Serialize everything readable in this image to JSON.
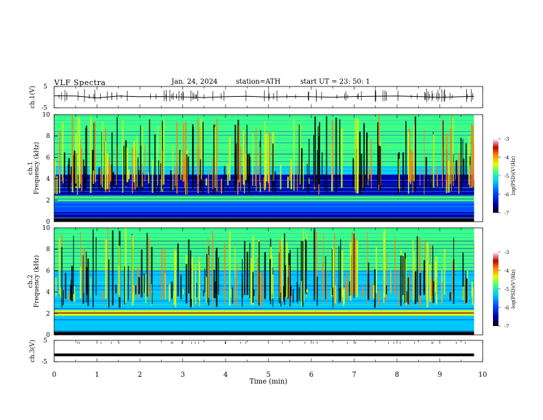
{
  "header": {
    "title": "VLF  Spectra",
    "date": "Jan. 24, 2024",
    "station": "station=ATH",
    "start": "start  UT  =    23: 50: 1"
  },
  "chart_data": [
    {
      "type": "line",
      "panel": "ch1-waveform",
      "ylabel": "ch.1(V)",
      "ylim": [
        -5,
        5
      ],
      "yticks": [
        "5",
        "-5"
      ],
      "x": [
        0,
        0.5,
        1,
        1.5,
        2,
        2.5,
        3,
        3.5,
        4,
        4.5,
        5,
        5.5,
        6,
        6.5,
        7,
        7.5,
        8,
        8.5,
        9,
        9.5,
        9.8
      ],
      "y": [
        0.6,
        0.5,
        -0.4,
        0.5,
        0.2,
        0.3,
        0.1,
        -0.2,
        0.2,
        0.4,
        0,
        0.3,
        0.2,
        -0.1,
        0.3,
        0.4,
        0.5,
        0.3,
        -0.1,
        0.2,
        0.4
      ]
    },
    {
      "type": "heatmap",
      "panel": "ch1-spectrogram",
      "ylabel": "ch.1\nFrequency  (kHz)",
      "ylim": [
        0,
        10
      ],
      "yticks": [
        "0",
        "2",
        "4",
        "6",
        "8",
        "10"
      ],
      "colorbar": {
        "label": "log(PSD)(V²/Hz)",
        "range": [
          -7,
          -3
        ],
        "ticks": [
          "-3",
          "-4",
          "-5",
          "-6",
          "-7"
        ]
      }
    },
    {
      "type": "heatmap",
      "panel": "ch2-spectrogram",
      "ylabel": "ch.2\nFrequency  (kHz)",
      "ylim": [
        0,
        10
      ],
      "yticks": [
        "0",
        "2",
        "4",
        "6",
        "8",
        "10"
      ],
      "colorbar": {
        "label": "log(PSD)(V²/Hz)",
        "range": [
          -7,
          -3
        ],
        "ticks": [
          "-3",
          "-4",
          "-5",
          "-6",
          "-7"
        ]
      }
    },
    {
      "type": "line",
      "panel": "ch3-waveform",
      "ylabel": "ch.3(V)",
      "ylim": [
        -5,
        5
      ],
      "yticks": [
        "5",
        "-5"
      ],
      "x": [
        0,
        9.8
      ],
      "y": [
        -1.8,
        -1.8
      ]
    }
  ],
  "xaxis": {
    "label": "Time  (min)",
    "ticks": [
      "0",
      "1",
      "2",
      "3",
      "4",
      "5",
      "6",
      "7",
      "8",
      "9",
      "10"
    ],
    "range": [
      0,
      10
    ]
  },
  "colors": {
    "waveform": "#000000",
    "colormap": [
      "#000000",
      "#0000b0",
      "#0050ff",
      "#00c8ff",
      "#40ff80",
      "#e0ff00",
      "#ff8000",
      "#c00000",
      "#ffffff"
    ]
  }
}
